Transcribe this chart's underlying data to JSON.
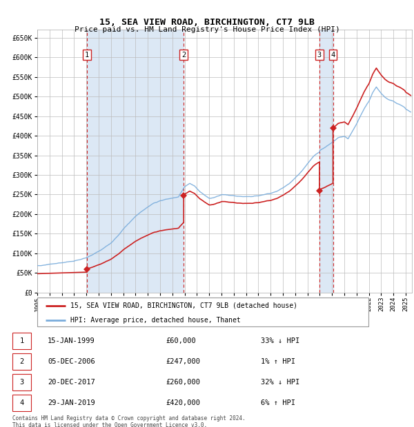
{
  "title": "15, SEA VIEW ROAD, BIRCHINGTON, CT7 9LB",
  "subtitle": "Price paid vs. HM Land Registry's House Price Index (HPI)",
  "ylim": [
    0,
    670000
  ],
  "yticks": [
    0,
    50000,
    100000,
    150000,
    200000,
    250000,
    300000,
    350000,
    400000,
    450000,
    500000,
    550000,
    600000,
    650000
  ],
  "ytick_labels": [
    "£0",
    "£50K",
    "£100K",
    "£150K",
    "£200K",
    "£250K",
    "£300K",
    "£350K",
    "£400K",
    "£450K",
    "£500K",
    "£550K",
    "£600K",
    "£650K"
  ],
  "hpi_color": "#7aaddc",
  "price_color": "#cc2222",
  "vline_color": "#cc2222",
  "shade_color": "#dce8f5",
  "grid_color": "#bbbbbb",
  "background_color": "#ffffff",
  "sales": [
    {
      "label": "1",
      "date_x": 1999.04,
      "price": 60000
    },
    {
      "label": "2",
      "date_x": 2006.92,
      "price": 247000
    },
    {
      "label": "3",
      "date_x": 2017.97,
      "price": 260000
    },
    {
      "label": "4",
      "date_x": 2019.08,
      "price": 420000
    }
  ],
  "legend_entries": [
    "15, SEA VIEW ROAD, BIRCHINGTON, CT7 9LB (detached house)",
    "HPI: Average price, detached house, Thanet"
  ],
  "table_rows": [
    [
      "1",
      "15-JAN-1999",
      "£60,000",
      "33% ↓ HPI"
    ],
    [
      "2",
      "05-DEC-2006",
      "£247,000",
      "1% ↑ HPI"
    ],
    [
      "3",
      "20-DEC-2017",
      "£260,000",
      "32% ↓ HPI"
    ],
    [
      "4",
      "29-JAN-2019",
      "£420,000",
      "6% ↑ HPI"
    ]
  ],
  "footer": "Contains HM Land Registry data © Crown copyright and database right 2024.\nThis data is licensed under the Open Government Licence v3.0.",
  "xmin": 1995.0,
  "xmax": 2025.5
}
